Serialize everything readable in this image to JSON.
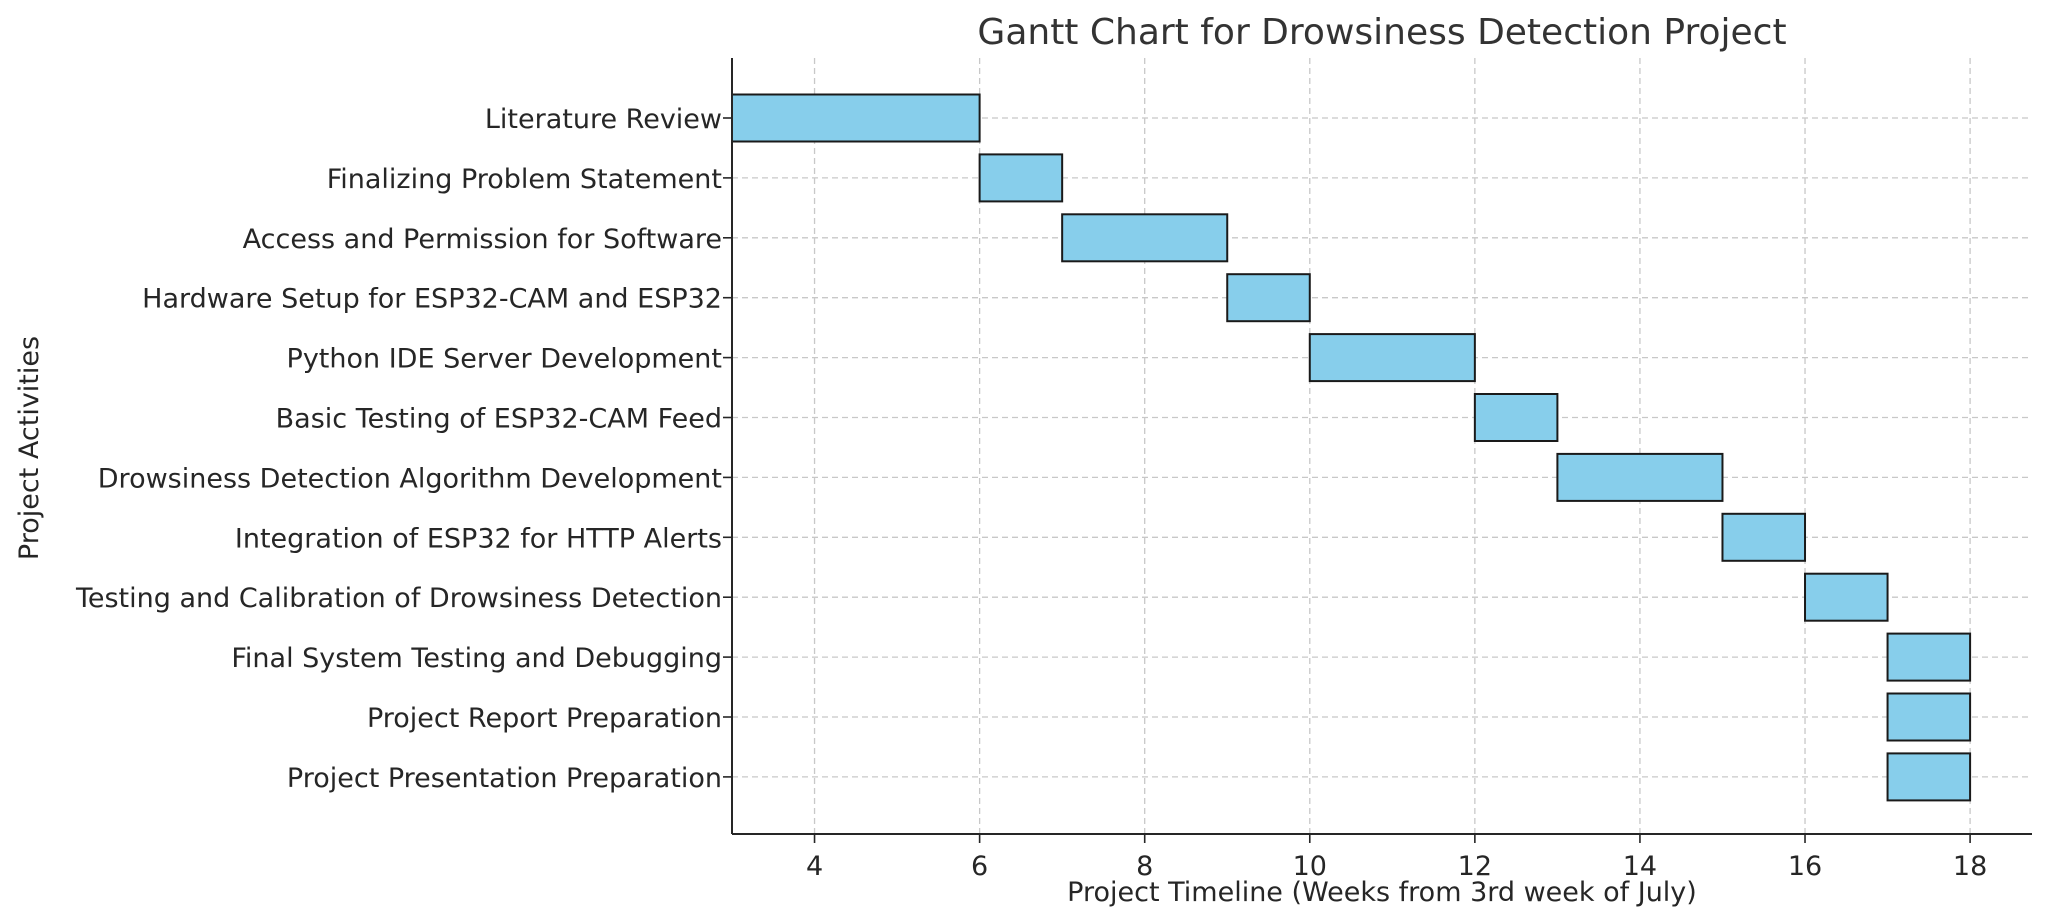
{
  "chart_data": {
    "type": "gantt",
    "title": "Gantt Chart for Drowsiness Detection Project",
    "xlabel": "Project Timeline (Weeks from 3rd week of July)",
    "ylabel": "Project Activities",
    "xlim": [
      3,
      18.75
    ],
    "xticks": [
      4,
      6,
      8,
      10,
      12,
      14,
      16,
      18
    ],
    "grid": true,
    "bar_color": "#87CEEB",
    "edge_color": "#1a1a1a",
    "tasks": [
      {
        "name": "Literature Review",
        "start": 3,
        "end": 6
      },
      {
        "name": "Finalizing Problem Statement",
        "start": 6,
        "end": 7
      },
      {
        "name": "Access and Permission for Software",
        "start": 7,
        "end": 9
      },
      {
        "name": "Hardware Setup for ESP32-CAM and ESP32",
        "start": 9,
        "end": 10
      },
      {
        "name": "Python IDE Server Development",
        "start": 10,
        "end": 12
      },
      {
        "name": "Basic Testing of ESP32-CAM Feed",
        "start": 12,
        "end": 13
      },
      {
        "name": "Drowsiness Detection Algorithm Development",
        "start": 13,
        "end": 15
      },
      {
        "name": "Integration of ESP32 for HTTP Alerts",
        "start": 15,
        "end": 16
      },
      {
        "name": "Testing and Calibration of Drowsiness Detection",
        "start": 16,
        "end": 17
      },
      {
        "name": "Final System Testing and Debugging",
        "start": 17,
        "end": 18
      },
      {
        "name": "Project Report Preparation",
        "start": 17,
        "end": 18
      },
      {
        "name": "Project Presentation Preparation",
        "start": 17,
        "end": 18
      }
    ]
  }
}
